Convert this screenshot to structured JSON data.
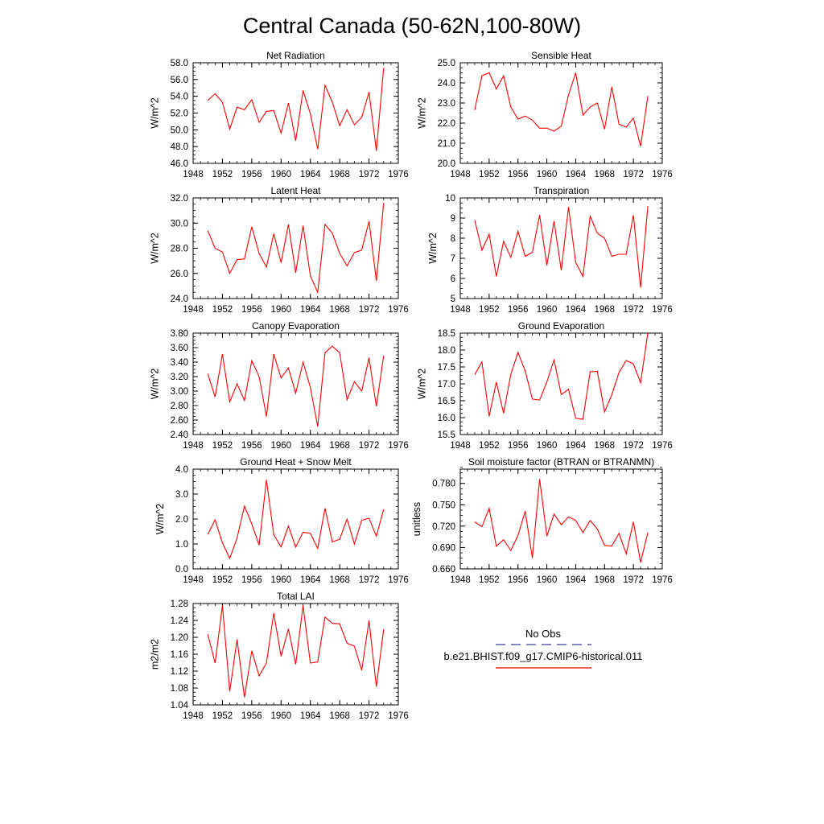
{
  "title": "Central Canada (50-62N,100-80W)",
  "legend": {
    "obs_label": "No Obs",
    "obs_color": "#3b3b9a",
    "model_label": "b.e21.BHIST.f09_g17.CMIP6-historical.011",
    "model_color": "#ff0000"
  },
  "chart_data": [
    {
      "type": "line",
      "title": "Net Radiation",
      "ylabel": "W/m^2",
      "xlim": [
        1948,
        1976
      ],
      "ylim": [
        46.0,
        58.0
      ],
      "xticks": [
        1948,
        1952,
        1956,
        1960,
        1964,
        1968,
        1972,
        1976
      ],
      "xtick_labels": [
        "1948",
        "1952",
        "1956",
        "1960",
        "1964",
        "1968",
        "1972",
        "1976"
      ],
      "yticks": [
        46.0,
        48.0,
        50.0,
        52.0,
        54.0,
        56.0,
        58.0
      ],
      "ytick_labels": [
        "46.0",
        "48.0",
        "50.0",
        "52.0",
        "54.0",
        "56.0",
        "58.0"
      ],
      "series": [
        {
          "color": "#ff0000",
          "x": [
            1950,
            1951,
            1952,
            1953,
            1954,
            1955,
            1956,
            1957,
            1958,
            1959,
            1960,
            1961,
            1962,
            1963,
            1964,
            1965,
            1966,
            1967,
            1968,
            1969,
            1970,
            1971,
            1972,
            1973,
            1974
          ],
          "y": [
            53.5,
            54.3,
            53.3,
            50.1,
            52.7,
            52.4,
            53.6,
            50.9,
            52.2,
            52.3,
            49.6,
            53.2,
            48.7,
            54.7,
            51.9,
            47.7,
            55.3,
            53.3,
            50.5,
            52.4,
            50.6,
            51.5,
            54.5,
            47.5,
            57.4
          ]
        }
      ]
    },
    {
      "type": "line",
      "title": "Sensible Heat",
      "ylabel": "W/m^2",
      "xlim": [
        1948,
        1976
      ],
      "ylim": [
        20.0,
        25.0
      ],
      "xticks": [
        1948,
        1952,
        1956,
        1960,
        1964,
        1968,
        1972,
        1976
      ],
      "xtick_labels": [
        "1948",
        "1952",
        "1956",
        "1960",
        "1964",
        "1968",
        "1972",
        "1976"
      ],
      "yticks": [
        20.0,
        21.0,
        22.0,
        23.0,
        24.0,
        25.0
      ],
      "ytick_labels": [
        "20.0",
        "21.0",
        "22.0",
        "23.0",
        "24.0",
        "25.0"
      ],
      "series": [
        {
          "color": "#ff0000",
          "x": [
            1950,
            1951,
            1952,
            1953,
            1954,
            1955,
            1956,
            1957,
            1958,
            1959,
            1960,
            1961,
            1962,
            1963,
            1964,
            1965,
            1966,
            1967,
            1968,
            1969,
            1970,
            1971,
            1972,
            1973,
            1974
          ],
          "y": [
            22.65,
            24.35,
            24.5,
            23.7,
            24.35,
            22.8,
            22.2,
            22.35,
            22.15,
            21.75,
            21.75,
            21.6,
            21.85,
            23.4,
            24.5,
            22.4,
            22.8,
            23.0,
            21.7,
            23.8,
            21.95,
            21.8,
            22.25,
            20.85,
            23.35
          ]
        }
      ]
    },
    {
      "type": "line",
      "title": "Latent Heat",
      "ylabel": "W/m^2",
      "xlim": [
        1948,
        1976
      ],
      "ylim": [
        24.0,
        32.0
      ],
      "xticks": [
        1948,
        1952,
        1956,
        1960,
        1964,
        1968,
        1972,
        1976
      ],
      "xtick_labels": [
        "1948",
        "1952",
        "1956",
        "1960",
        "1964",
        "1968",
        "1972",
        "1976"
      ],
      "yticks": [
        24.0,
        26.0,
        28.0,
        30.0,
        32.0
      ],
      "ytick_labels": [
        "24.0",
        "26.0",
        "28.0",
        "30.0",
        "32.0"
      ],
      "series": [
        {
          "color": "#ff0000",
          "x": [
            1950,
            1951,
            1952,
            1953,
            1954,
            1955,
            1956,
            1957,
            1958,
            1959,
            1960,
            1961,
            1962,
            1963,
            1964,
            1965,
            1966,
            1967,
            1968,
            1969,
            1970,
            1971,
            1972,
            1973,
            1974
          ],
          "y": [
            29.4,
            28.0,
            27.7,
            26.0,
            27.1,
            27.15,
            29.7,
            27.6,
            26.5,
            29.15,
            26.85,
            29.9,
            26.05,
            29.8,
            25.8,
            24.5,
            29.9,
            29.2,
            27.6,
            26.6,
            27.65,
            27.85,
            30.15,
            25.4,
            31.6
          ]
        }
      ]
    },
    {
      "type": "line",
      "title": "Transpiration",
      "ylabel": "W/m^2",
      "xlim": [
        1948,
        1976
      ],
      "ylim": [
        5,
        10
      ],
      "xticks": [
        1948,
        1952,
        1956,
        1960,
        1964,
        1968,
        1972,
        1976
      ],
      "xtick_labels": [
        "1948",
        "1952",
        "1956",
        "1960",
        "1964",
        "1968",
        "1972",
        "1976"
      ],
      "yticks": [
        5,
        6,
        7,
        8,
        9,
        10
      ],
      "ytick_labels": [
        "5",
        "6",
        "7",
        "8",
        "9",
        "10"
      ],
      "series": [
        {
          "color": "#ff0000",
          "x": [
            1950,
            1951,
            1952,
            1953,
            1954,
            1955,
            1956,
            1957,
            1958,
            1959,
            1960,
            1961,
            1962,
            1963,
            1964,
            1965,
            1966,
            1967,
            1968,
            1969,
            1970,
            1971,
            1972,
            1973,
            1974
          ],
          "y": [
            8.9,
            7.4,
            8.2,
            6.1,
            7.85,
            7.05,
            8.35,
            7.1,
            7.3,
            9.15,
            6.65,
            8.85,
            6.4,
            9.55,
            6.8,
            6.1,
            9.1,
            8.25,
            8.0,
            7.1,
            7.2,
            7.2,
            9.15,
            5.55,
            9.6
          ]
        }
      ]
    },
    {
      "type": "line",
      "title": "Canopy Evaporation",
      "ylabel": "W/m^2",
      "xlim": [
        1948,
        1976
      ],
      "ylim": [
        2.4,
        3.8
      ],
      "xticks": [
        1948,
        1952,
        1956,
        1960,
        1964,
        1968,
        1972,
        1976
      ],
      "xtick_labels": [
        "1948",
        "1952",
        "1956",
        "1960",
        "1964",
        "1968",
        "1972",
        "1976"
      ],
      "yticks": [
        2.4,
        2.6,
        2.8,
        3.0,
        3.2,
        3.4,
        3.6,
        3.8
      ],
      "ytick_labels": [
        "2.40",
        "2.60",
        "2.80",
        "3.00",
        "3.20",
        "3.40",
        "3.60",
        "3.80"
      ],
      "series": [
        {
          "color": "#ff0000",
          "x": [
            1950,
            1951,
            1952,
            1953,
            1954,
            1955,
            1956,
            1957,
            1958,
            1959,
            1960,
            1961,
            1962,
            1963,
            1964,
            1965,
            1966,
            1967,
            1968,
            1969,
            1970,
            1971,
            1972,
            1973,
            1974
          ],
          "y": [
            3.24,
            2.92,
            3.51,
            2.85,
            3.1,
            2.87,
            3.42,
            3.2,
            2.65,
            3.51,
            3.18,
            3.32,
            2.97,
            3.4,
            3.05,
            2.51,
            3.53,
            3.62,
            3.53,
            2.88,
            3.13,
            3.0,
            3.46,
            2.79,
            3.49
          ]
        }
      ]
    },
    {
      "type": "line",
      "title": "Ground Evaporation",
      "ylabel": "W/m^2",
      "xlim": [
        1948,
        1976
      ],
      "ylim": [
        15.5,
        18.5
      ],
      "xticks": [
        1948,
        1952,
        1956,
        1960,
        1964,
        1968,
        1972,
        1976
      ],
      "xtick_labels": [
        "1948",
        "1952",
        "1956",
        "1960",
        "1964",
        "1968",
        "1972",
        "1976"
      ],
      "yticks": [
        15.5,
        16.0,
        16.5,
        17.0,
        17.5,
        18.0,
        18.5
      ],
      "ytick_labels": [
        "15.5",
        "16.0",
        "16.5",
        "17.0",
        "17.5",
        "18.0",
        "18.5"
      ],
      "series": [
        {
          "color": "#ff0000",
          "x": [
            1950,
            1951,
            1952,
            1953,
            1954,
            1955,
            1956,
            1957,
            1958,
            1959,
            1960,
            1961,
            1962,
            1963,
            1964,
            1965,
            1966,
            1967,
            1968,
            1969,
            1970,
            1971,
            1972,
            1973,
            1974
          ],
          "y": [
            17.27,
            17.65,
            16.04,
            17.05,
            16.13,
            17.28,
            17.93,
            17.38,
            16.55,
            16.52,
            17.06,
            17.71,
            16.68,
            16.84,
            15.98,
            15.95,
            17.36,
            17.37,
            16.17,
            16.68,
            17.33,
            17.69,
            17.59,
            17.03,
            18.52
          ]
        }
      ]
    },
    {
      "type": "line",
      "title": "Ground Heat + Snow Melt",
      "ylabel": "W/m^2",
      "xlim": [
        1948,
        1976
      ],
      "ylim": [
        0.0,
        4.0
      ],
      "xticks": [
        1948,
        1952,
        1956,
        1960,
        1964,
        1968,
        1972,
        1976
      ],
      "xtick_labels": [
        "1948",
        "1952",
        "1956",
        "1960",
        "1964",
        "1968",
        "1972",
        "1976"
      ],
      "yticks": [
        0.0,
        1.0,
        2.0,
        3.0,
        4.0
      ],
      "ytick_labels": [
        "0.0",
        "1.0",
        "2.0",
        "3.0",
        "4.0"
      ],
      "series": [
        {
          "color": "#ff0000",
          "x": [
            1950,
            1951,
            1952,
            1953,
            1954,
            1955,
            1956,
            1957,
            1958,
            1959,
            1960,
            1961,
            1962,
            1963,
            1964,
            1965,
            1966,
            1967,
            1968,
            1969,
            1970,
            1971,
            1972,
            1973,
            1974
          ],
          "y": [
            1.38,
            1.97,
            1.05,
            0.42,
            1.24,
            2.52,
            1.8,
            0.95,
            3.57,
            1.37,
            0.88,
            1.72,
            0.87,
            1.47,
            1.43,
            0.82,
            2.43,
            1.08,
            1.19,
            2.0,
            1.0,
            1.95,
            2.03,
            1.31,
            2.39
          ]
        }
      ]
    },
    {
      "type": "line",
      "title": "Soil moisture factor (BTRAN or BTRANMN)",
      "ylabel": "unitless",
      "xlim": [
        1948,
        1976
      ],
      "ylim": [
        0.66,
        0.8
      ],
      "xticks": [
        1948,
        1952,
        1956,
        1960,
        1964,
        1968,
        1972,
        1976
      ],
      "xtick_labels": [
        "1948",
        "1952",
        "1956",
        "1960",
        "1964",
        "1968",
        "1972",
        "1976"
      ],
      "yticks": [
        0.66,
        0.69,
        0.72,
        0.75,
        0.78
      ],
      "ytick_labels": [
        "0.660",
        "0.690",
        "0.720",
        "0.750",
        "0.780"
      ],
      "series": [
        {
          "color": "#ff0000",
          "x": [
            1950,
            1951,
            1952,
            1953,
            1954,
            1955,
            1956,
            1957,
            1958,
            1959,
            1960,
            1961,
            1962,
            1963,
            1964,
            1965,
            1966,
            1967,
            1968,
            1969,
            1970,
            1971,
            1972,
            1973,
            1974
          ],
          "y": [
            0.726,
            0.719,
            0.745,
            0.692,
            0.701,
            0.686,
            0.707,
            0.741,
            0.675,
            0.786,
            0.706,
            0.737,
            0.722,
            0.733,
            0.728,
            0.711,
            0.728,
            0.716,
            0.693,
            0.692,
            0.71,
            0.681,
            0.726,
            0.669,
            0.711
          ]
        }
      ]
    },
    {
      "type": "line",
      "title": "Total LAI",
      "ylabel": "m2/m2",
      "xlim": [
        1948,
        1976
      ],
      "ylim": [
        1.04,
        1.28
      ],
      "xticks": [
        1948,
        1952,
        1956,
        1960,
        1964,
        1968,
        1972,
        1976
      ],
      "xtick_labels": [
        "1948",
        "1952",
        "1956",
        "1960",
        "1964",
        "1968",
        "1972",
        "1976"
      ],
      "yticks": [
        1.04,
        1.08,
        1.12,
        1.16,
        1.2,
        1.24,
        1.28
      ],
      "ytick_labels": [
        "1.04",
        "1.08",
        "1.12",
        "1.16",
        "1.20",
        "1.24",
        "1.28"
      ],
      "series": [
        {
          "color": "#ff0000",
          "x": [
            1950,
            1951,
            1952,
            1953,
            1954,
            1955,
            1956,
            1957,
            1958,
            1959,
            1960,
            1961,
            1962,
            1963,
            1964,
            1965,
            1966,
            1967,
            1968,
            1969,
            1970,
            1971,
            1972,
            1973,
            1974
          ],
          "y": [
            1.207,
            1.139,
            1.275,
            1.072,
            1.195,
            1.058,
            1.168,
            1.109,
            1.139,
            1.257,
            1.155,
            1.22,
            1.136,
            1.275,
            1.139,
            1.142,
            1.248,
            1.233,
            1.232,
            1.186,
            1.179,
            1.122,
            1.24,
            1.083,
            1.219
          ]
        }
      ]
    }
  ]
}
